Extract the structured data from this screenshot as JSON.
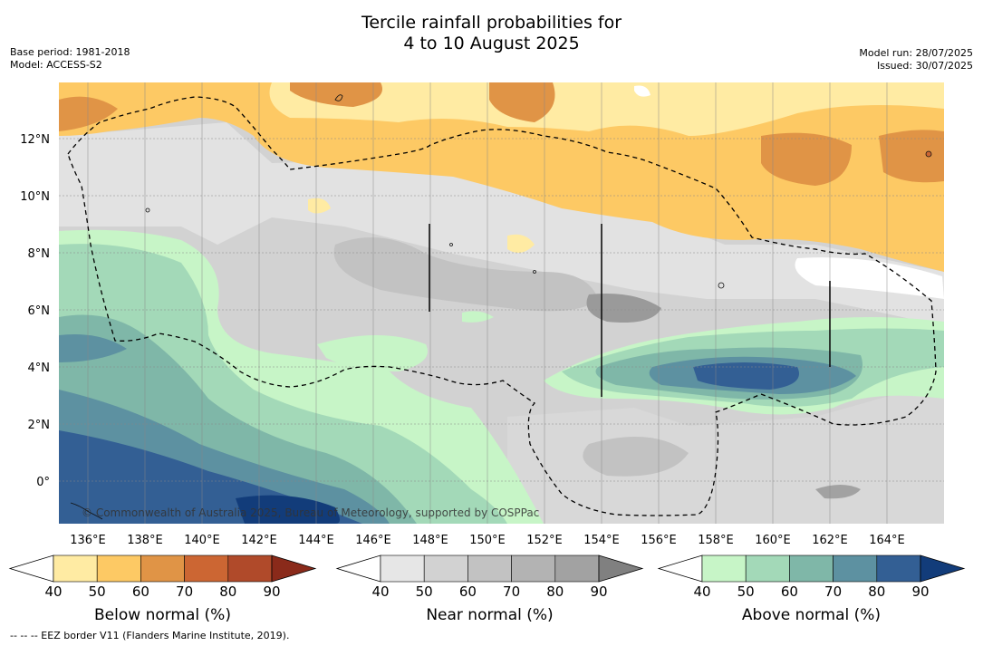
{
  "title_line1": "Tercile rainfall probabilities for",
  "title_line2": "4 to 10 August 2025",
  "base_period": "Base period: 1981-2018",
  "model": "Model: ACCESS-S2",
  "model_run": "Model run: 28/07/2025",
  "issued": "Issued: 30/07/2025",
  "copyright": "© Commonwealth of Australia 2025, Bureau of Meteorology, supported by COSPPac",
  "footer": "--  --  -- EEZ border V11 (Flanders Marine Institute, 2019).",
  "lat_labels": [
    "12°N",
    "10°N",
    "8°N",
    "6°N",
    "4°N",
    "2°N",
    "0°"
  ],
  "lon_labels": [
    "136°E",
    "138°E",
    "140°E",
    "142°E",
    "144°E",
    "146°E",
    "148°E",
    "150°E",
    "152°E",
    "154°E",
    "156°E",
    "158°E",
    "160°E",
    "162°E",
    "164°E"
  ],
  "colorbars": [
    {
      "label": "Below normal (%)",
      "ticks": [
        "40",
        "50",
        "60",
        "70",
        "80",
        "90"
      ],
      "colors": [
        "#ffeba3",
        "#fdc964",
        "#e09446",
        "#cc6633",
        "#b04a2a",
        "#8a2a1a"
      ]
    },
    {
      "label": "Near normal (%)",
      "ticks": [
        "40",
        "50",
        "60",
        "70",
        "80",
        "90"
      ],
      "colors": [
        "#e6e6e6",
        "#d2d2d2",
        "#c2c2c2",
        "#b3b3b3",
        "#a2a2a2",
        "#808080"
      ]
    },
    {
      "label": "Above normal (%)",
      "ticks": [
        "40",
        "50",
        "60",
        "70",
        "80",
        "90"
      ],
      "colors": [
        "#c7f5c7",
        "#a3d9b8",
        "#7fb7a8",
        "#5d91a1",
        "#335f94",
        "#123c7a"
      ]
    }
  ]
}
